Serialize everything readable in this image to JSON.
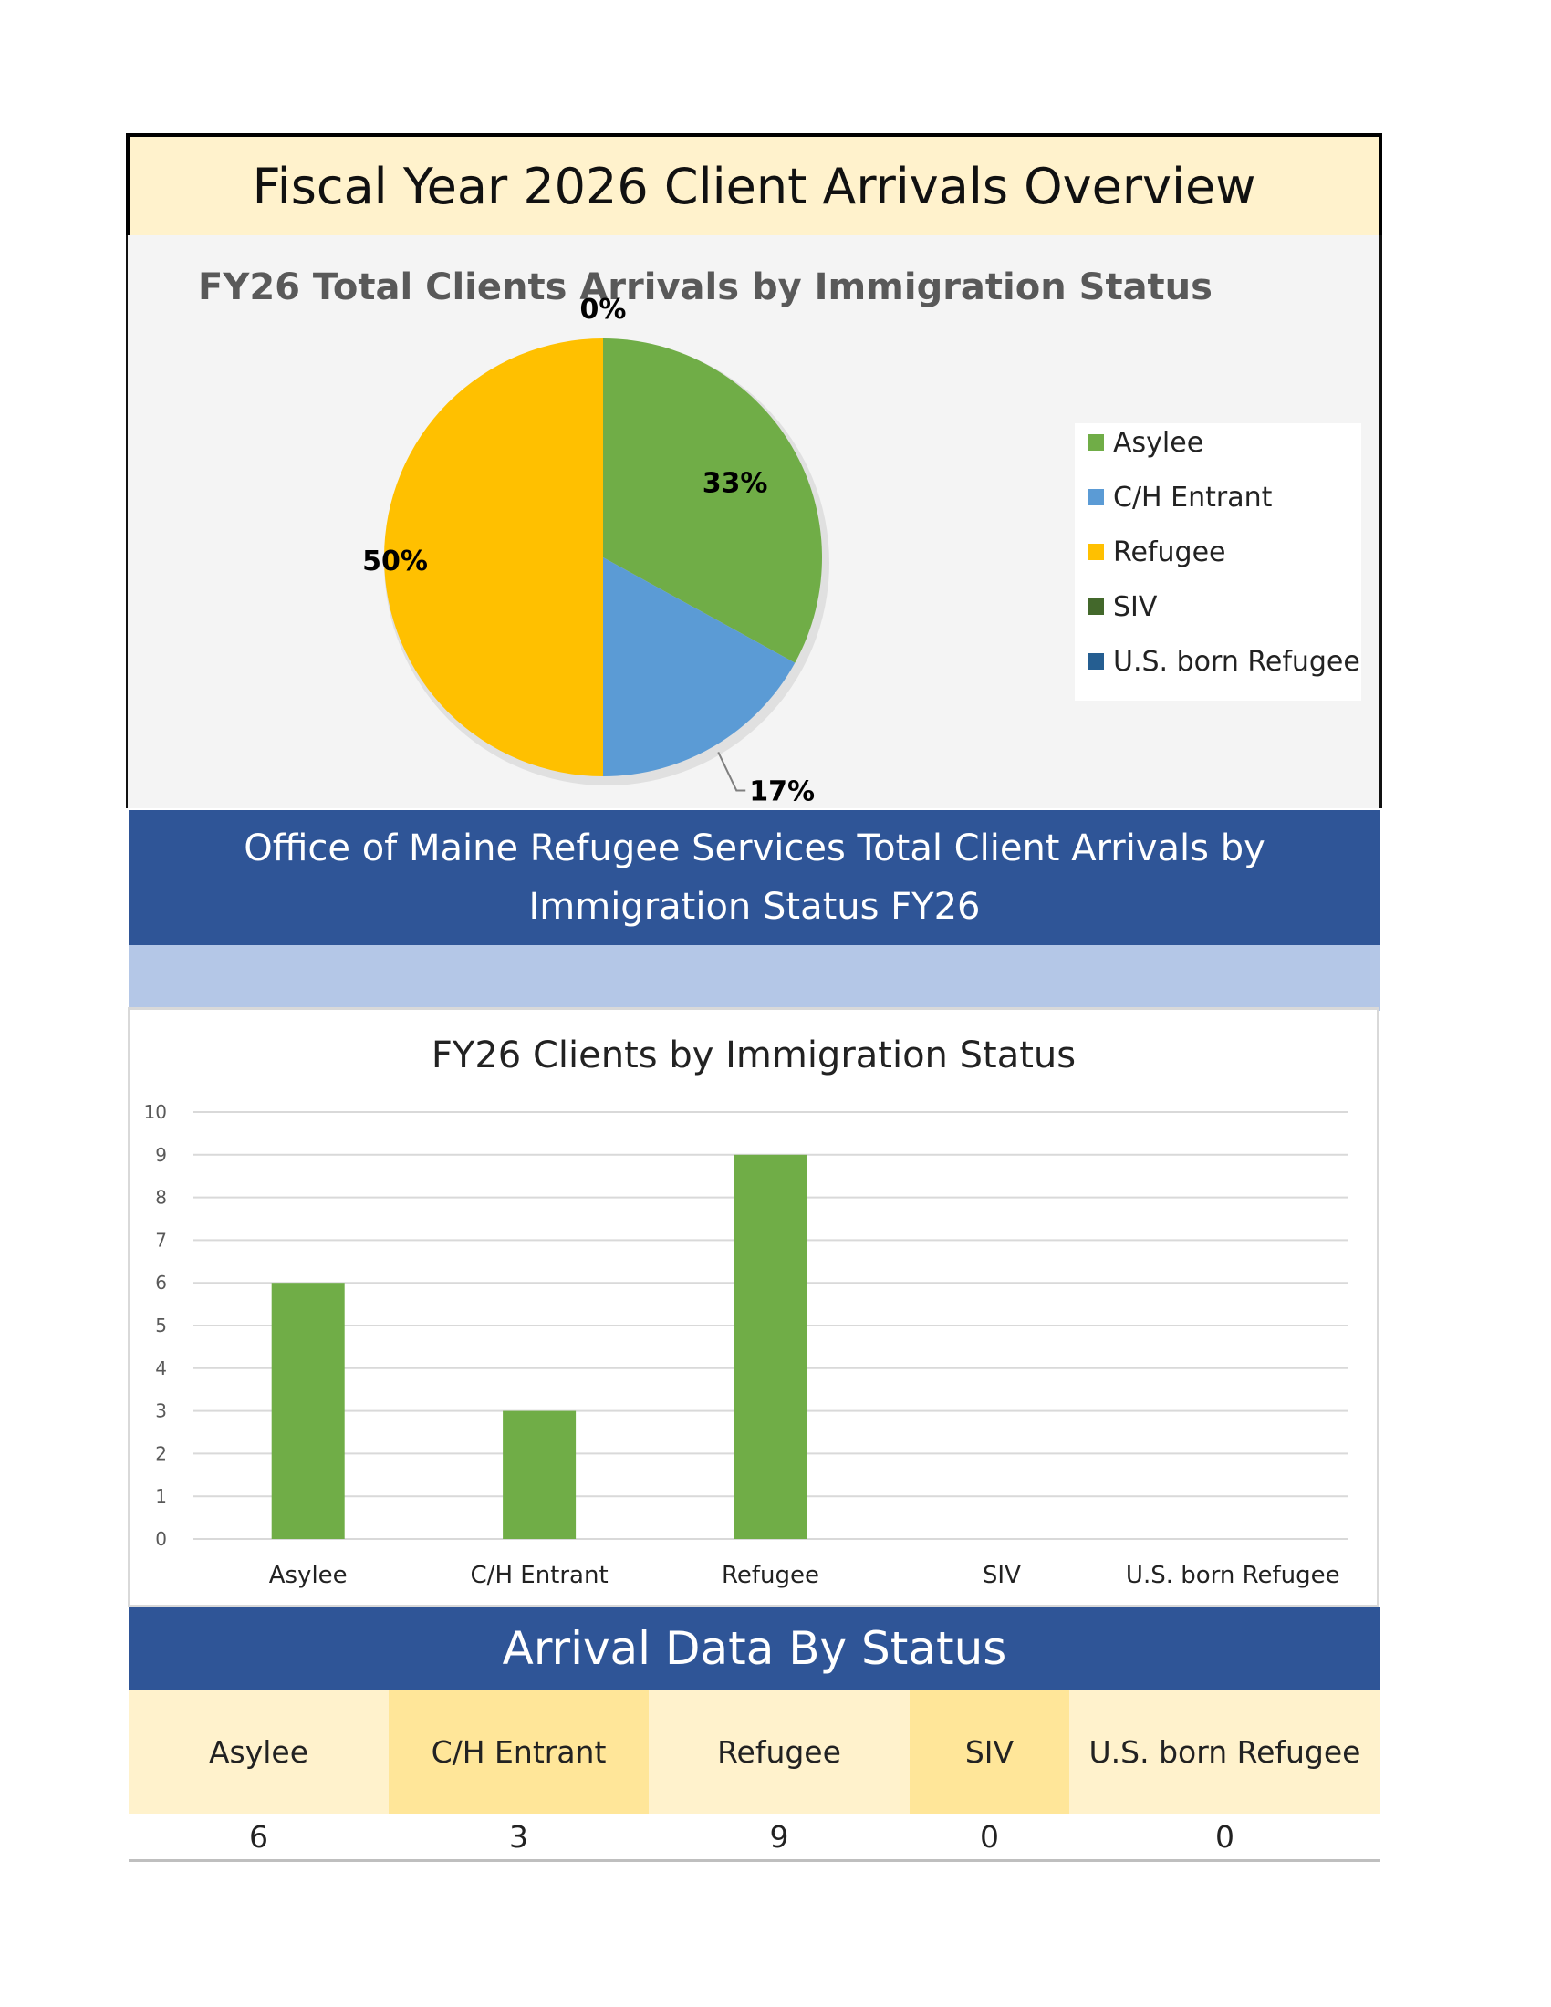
{
  "page_title": "Fiscal Year 2026 Client Arrivals Overview",
  "section_banner": "Office of Maine Refugee Services Total Client Arrivals by Immigration Status FY26",
  "section_banner_lines": [
    "Office of Maine Refugee Services Total Client Arrivals by",
    "Immigration Status FY26"
  ],
  "table_title": "Arrival Data By Status",
  "chart_data": [
    {
      "type": "pie",
      "title": "FY26 Total Clients Arrivals by Immigration Status",
      "categories": [
        "Asylee",
        "C/H Entrant",
        "Refugee",
        "SIV",
        "U.S. born Refugee"
      ],
      "values": [
        33,
        17,
        50,
        0,
        0
      ],
      "labels": [
        "33%",
        "17%",
        "50%",
        "0%",
        "0%"
      ],
      "colors": [
        "#70ad47",
        "#5b9bd5",
        "#ffc000",
        "#43682b",
        "#255e91"
      ],
      "legend_position": "right"
    },
    {
      "type": "bar",
      "title": "FY26 Clients by Immigration Status",
      "categories": [
        "Asylee",
        "C/H Entrant",
        "Refugee",
        "SIV",
        "U.S. born Refugee"
      ],
      "values": [
        6,
        3,
        9,
        0,
        0
      ],
      "ylim": [
        0,
        10
      ],
      "yticks": [
        0,
        1,
        2,
        3,
        4,
        5,
        6,
        7,
        8,
        9,
        10
      ],
      "grid": true,
      "bar_color": "#70ad47",
      "xlabel": "",
      "ylabel": ""
    }
  ],
  "table": {
    "headers": [
      "Asylee",
      "C/H Entrant",
      "Refugee",
      "SIV",
      "U.S. born Refugee"
    ],
    "values": [
      "6",
      "3",
      "9",
      "0",
      "0"
    ],
    "header_colors": [
      "#fff2cc",
      "#ffe699",
      "#fff2cc",
      "#ffe699",
      "#fff2cc"
    ]
  }
}
